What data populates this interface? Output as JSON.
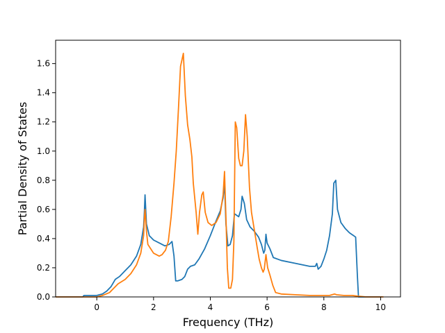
{
  "chart_data": {
    "type": "line",
    "title": "",
    "xlabel": "Frequency (THz)",
    "ylabel": "Partial Density of States",
    "xlim": [
      -1.45,
      10.7
    ],
    "ylim": [
      0.0,
      1.76
    ],
    "xticks": [
      0,
      2,
      4,
      6,
      8,
      10
    ],
    "xtick_labels": [
      "0",
      "2",
      "4",
      "6",
      "8",
      "10"
    ],
    "yticks": [
      0.0,
      0.2,
      0.4,
      0.6,
      0.8,
      1.0,
      1.2,
      1.4,
      1.6
    ],
    "ytick_labels": [
      "0.0",
      "0.2",
      "0.4",
      "0.6",
      "0.8",
      "1.0",
      "1.2",
      "1.4",
      "1.6"
    ],
    "grid": false,
    "legend": "none",
    "series": [
      {
        "color": "#1f77b4",
        "points": [
          [
            -1.45,
            0.0
          ],
          [
            -0.5,
            0.0
          ],
          [
            -0.45,
            0.01
          ],
          [
            0.0,
            0.01
          ],
          [
            0.2,
            0.02
          ],
          [
            0.35,
            0.04
          ],
          [
            0.5,
            0.07
          ],
          [
            0.65,
            0.12
          ],
          [
            0.8,
            0.14
          ],
          [
            1.0,
            0.18
          ],
          [
            1.2,
            0.22
          ],
          [
            1.4,
            0.28
          ],
          [
            1.55,
            0.36
          ],
          [
            1.65,
            0.48
          ],
          [
            1.68,
            0.6
          ],
          [
            1.7,
            0.7
          ],
          [
            1.75,
            0.5
          ],
          [
            1.85,
            0.42
          ],
          [
            2.0,
            0.39
          ],
          [
            2.2,
            0.37
          ],
          [
            2.4,
            0.35
          ],
          [
            2.55,
            0.36
          ],
          [
            2.65,
            0.38
          ],
          [
            2.72,
            0.28
          ],
          [
            2.78,
            0.11
          ],
          [
            2.85,
            0.11
          ],
          [
            3.0,
            0.12
          ],
          [
            3.1,
            0.14
          ],
          [
            3.2,
            0.19
          ],
          [
            3.3,
            0.21
          ],
          [
            3.45,
            0.22
          ],
          [
            3.6,
            0.26
          ],
          [
            3.8,
            0.33
          ],
          [
            4.0,
            0.42
          ],
          [
            4.2,
            0.52
          ],
          [
            4.35,
            0.59
          ],
          [
            4.45,
            0.68
          ],
          [
            4.5,
            0.78
          ],
          [
            4.55,
            0.5
          ],
          [
            4.62,
            0.35
          ],
          [
            4.7,
            0.36
          ],
          [
            4.78,
            0.42
          ],
          [
            4.85,
            0.57
          ],
          [
            5.0,
            0.55
          ],
          [
            5.08,
            0.6
          ],
          [
            5.12,
            0.69
          ],
          [
            5.2,
            0.64
          ],
          [
            5.28,
            0.53
          ],
          [
            5.4,
            0.48
          ],
          [
            5.55,
            0.45
          ],
          [
            5.7,
            0.41
          ],
          [
            5.8,
            0.36
          ],
          [
            5.88,
            0.3
          ],
          [
            5.92,
            0.32
          ],
          [
            5.96,
            0.43
          ],
          [
            6.0,
            0.37
          ],
          [
            6.1,
            0.33
          ],
          [
            6.22,
            0.27
          ],
          [
            6.5,
            0.25
          ],
          [
            7.0,
            0.23
          ],
          [
            7.5,
            0.21
          ],
          [
            7.7,
            0.21
          ],
          [
            7.75,
            0.23
          ],
          [
            7.8,
            0.19
          ],
          [
            7.9,
            0.21
          ],
          [
            8.0,
            0.26
          ],
          [
            8.1,
            0.32
          ],
          [
            8.2,
            0.42
          ],
          [
            8.3,
            0.57
          ],
          [
            8.35,
            0.78
          ],
          [
            8.42,
            0.8
          ],
          [
            8.48,
            0.6
          ],
          [
            8.6,
            0.51
          ],
          [
            8.75,
            0.47
          ],
          [
            8.9,
            0.44
          ],
          [
            9.05,
            0.42
          ],
          [
            9.12,
            0.41
          ],
          [
            9.18,
            0.15
          ],
          [
            9.22,
            0.0
          ],
          [
            10.0,
            0.0
          ],
          [
            10.05,
            0.0
          ]
        ]
      },
      {
        "color": "#ff7f0e",
        "points": [
          [
            -1.45,
            0.0
          ],
          [
            -0.4,
            0.0
          ],
          [
            0.0,
            0.0
          ],
          [
            0.2,
            0.01
          ],
          [
            0.45,
            0.03
          ],
          [
            0.6,
            0.06
          ],
          [
            0.75,
            0.09
          ],
          [
            1.0,
            0.12
          ],
          [
            1.2,
            0.16
          ],
          [
            1.4,
            0.22
          ],
          [
            1.55,
            0.3
          ],
          [
            1.65,
            0.42
          ],
          [
            1.68,
            0.55
          ],
          [
            1.7,
            0.6
          ],
          [
            1.75,
            0.45
          ],
          [
            1.8,
            0.36
          ],
          [
            1.9,
            0.33
          ],
          [
            2.0,
            0.3
          ],
          [
            2.1,
            0.29
          ],
          [
            2.2,
            0.28
          ],
          [
            2.3,
            0.29
          ],
          [
            2.42,
            0.32
          ],
          [
            2.52,
            0.38
          ],
          [
            2.62,
            0.55
          ],
          [
            2.72,
            0.78
          ],
          [
            2.8,
            1.0
          ],
          [
            2.88,
            1.3
          ],
          [
            2.95,
            1.58
          ],
          [
            3.05,
            1.67
          ],
          [
            3.12,
            1.38
          ],
          [
            3.2,
            1.18
          ],
          [
            3.28,
            1.08
          ],
          [
            3.35,
            0.96
          ],
          [
            3.4,
            0.78
          ],
          [
            3.5,
            0.58
          ],
          [
            3.56,
            0.43
          ],
          [
            3.62,
            0.58
          ],
          [
            3.7,
            0.7
          ],
          [
            3.75,
            0.72
          ],
          [
            3.82,
            0.58
          ],
          [
            3.92,
            0.51
          ],
          [
            4.05,
            0.49
          ],
          [
            4.2,
            0.51
          ],
          [
            4.35,
            0.57
          ],
          [
            4.45,
            0.7
          ],
          [
            4.5,
            0.86
          ],
          [
            4.55,
            0.55
          ],
          [
            4.6,
            0.2
          ],
          [
            4.65,
            0.06
          ],
          [
            4.72,
            0.06
          ],
          [
            4.78,
            0.12
          ],
          [
            4.83,
            0.38
          ],
          [
            4.88,
            1.2
          ],
          [
            4.93,
            1.16
          ],
          [
            5.0,
            0.95
          ],
          [
            5.06,
            0.9
          ],
          [
            5.12,
            0.9
          ],
          [
            5.18,
            1.0
          ],
          [
            5.24,
            1.25
          ],
          [
            5.3,
            1.1
          ],
          [
            5.38,
            0.75
          ],
          [
            5.45,
            0.58
          ],
          [
            5.55,
            0.46
          ],
          [
            5.65,
            0.34
          ],
          [
            5.72,
            0.26
          ],
          [
            5.8,
            0.2
          ],
          [
            5.86,
            0.17
          ],
          [
            5.9,
            0.19
          ],
          [
            5.96,
            0.29
          ],
          [
            6.02,
            0.2
          ],
          [
            6.1,
            0.15
          ],
          [
            6.2,
            0.08
          ],
          [
            6.3,
            0.03
          ],
          [
            6.5,
            0.02
          ],
          [
            7.0,
            0.015
          ],
          [
            7.5,
            0.01
          ],
          [
            8.0,
            0.01
          ],
          [
            8.2,
            0.01
          ],
          [
            8.38,
            0.02
          ],
          [
            8.45,
            0.015
          ],
          [
            8.7,
            0.01
          ],
          [
            9.0,
            0.01
          ],
          [
            9.2,
            0.005
          ],
          [
            9.5,
            0.0
          ],
          [
            10.0,
            0.0
          ],
          [
            10.1,
            0.0
          ]
        ]
      }
    ]
  }
}
